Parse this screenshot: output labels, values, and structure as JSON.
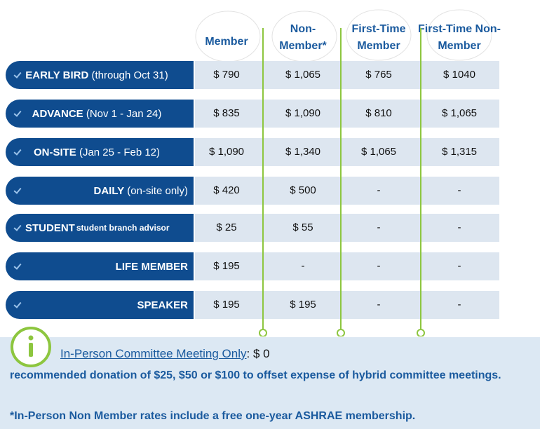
{
  "table": {
    "headers": [
      "Member",
      "Non-Member*",
      "First-Time Member",
      "First-Time Non-Member"
    ],
    "rows": [
      {
        "label": "EARLY BIRD (through Oct 31)",
        "note": null,
        "values": [
          "$ 790",
          "$ 1,065",
          "$ 765",
          "$ 1040"
        ]
      },
      {
        "label": "ADVANCE (Nov 1 - Jan 24)",
        "note": null,
        "values": [
          "$ 835",
          "$ 1,090",
          "$ 810",
          "$ 1,065"
        ]
      },
      {
        "label": "ON-SITE (Jan 25 - Feb 12)",
        "note": null,
        "values": [
          "$ 1,090",
          "$ 1,340",
          "$ 1,065",
          "$ 1,315"
        ]
      },
      {
        "label": "DAILY (on-site only)",
        "note": null,
        "values": [
          "$ 420",
          "$ 500",
          "-",
          "-"
        ]
      },
      {
        "label": "STUDENT",
        "note": "student branch advisor",
        "values": [
          "$ 25",
          "$ 55",
          "-",
          "-"
        ]
      },
      {
        "label": "LIFE MEMBER",
        "note": null,
        "values": [
          "$ 195",
          "-",
          "-",
          "-"
        ]
      },
      {
        "label": "SPEAKER",
        "note": null,
        "values": [
          "$ 195",
          "$ 195",
          "-",
          "-"
        ]
      }
    ]
  },
  "footer": {
    "link": "In-Person Committee Meeting Only",
    "price": ": $ 0",
    "description": "recommended donation of $25, $50 or $100 to offset expense of hybrid committee meetings.",
    "footnote": "*In-Person Non Member rates include a free one-year ASHRAE membership."
  }
}
